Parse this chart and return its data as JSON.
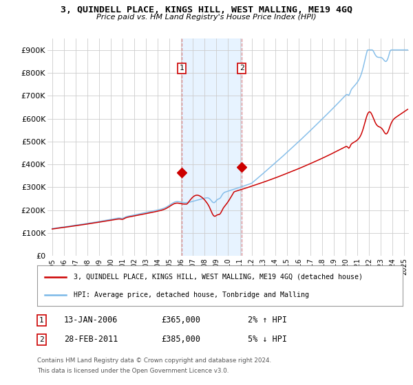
{
  "title": "3, QUINDELL PLACE, KINGS HILL, WEST MALLING, ME19 4GQ",
  "subtitle": "Price paid vs. HM Land Registry's House Price Index (HPI)",
  "ylim": [
    0,
    950000
  ],
  "yticks": [
    0,
    100000,
    200000,
    300000,
    400000,
    500000,
    600000,
    700000,
    800000,
    900000
  ],
  "ytick_labels": [
    "£0",
    "£100K",
    "£200K",
    "£300K",
    "£400K",
    "£500K",
    "£600K",
    "£700K",
    "£800K",
    "£900K"
  ],
  "xlim_start": 1994.6,
  "xlim_end": 2025.4,
  "hpi_color": "#7ab8e8",
  "price_color": "#cc0000",
  "marker1_date": 2006.04,
  "marker1_price": 365000,
  "marker2_date": 2011.16,
  "marker2_price": 390000,
  "legend_label1": "3, QUINDELL PLACE, KINGS HILL, WEST MALLING, ME19 4GQ (detached house)",
  "legend_label2": "HPI: Average price, detached house, Tonbridge and Malling",
  "footnote1": "Contains HM Land Registry data © Crown copyright and database right 2024.",
  "footnote2": "This data is licensed under the Open Government Licence v3.0.",
  "background_color": "#ffffff",
  "grid_color": "#cccccc",
  "shade_color": "#ddeeff",
  "shade_start": 2006.04,
  "shade_end": 2011.16,
  "xtick_years": [
    1995,
    1996,
    1997,
    1998,
    1999,
    2000,
    2001,
    2002,
    2003,
    2004,
    2005,
    2006,
    2007,
    2008,
    2009,
    2010,
    2011,
    2012,
    2013,
    2014,
    2015,
    2016,
    2017,
    2018,
    2019,
    2020,
    2021,
    2022,
    2023,
    2024,
    2025
  ]
}
